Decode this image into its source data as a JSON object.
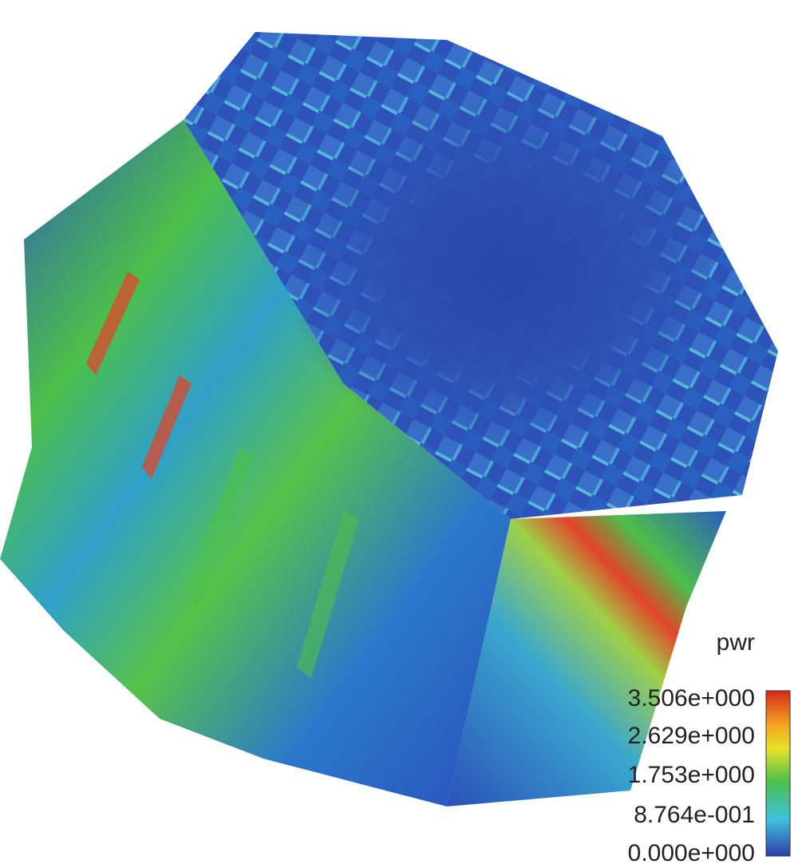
{
  "legend": {
    "title": "pwr",
    "labels": [
      "3.506e+000",
      "2.629e+000",
      "1.753e+000",
      "8.764e-001",
      "0.000e+000"
    ]
  }
}
